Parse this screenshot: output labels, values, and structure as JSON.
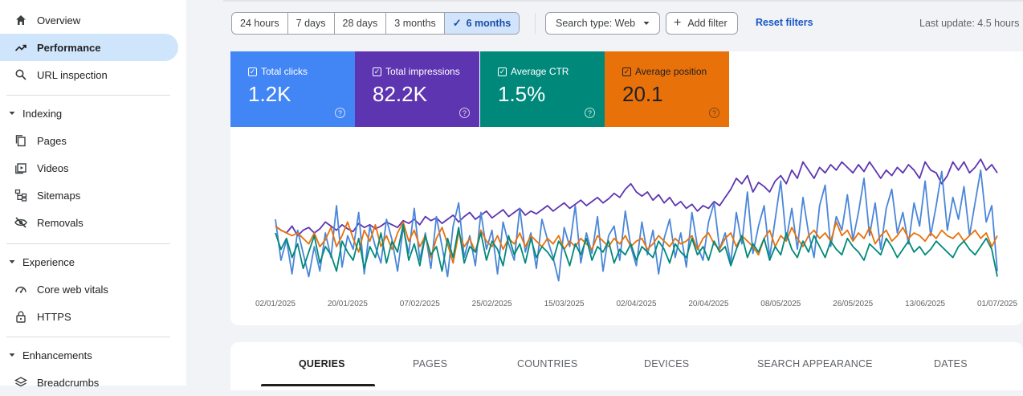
{
  "sidebar": {
    "items": [
      {
        "label": "Overview",
        "icon": "home-icon"
      },
      {
        "label": "Performance",
        "icon": "trending-up-icon",
        "active": true
      },
      {
        "label": "URL inspection",
        "icon": "search-icon"
      }
    ],
    "sections": [
      {
        "label": "Indexing",
        "items": [
          {
            "label": "Pages",
            "icon": "pages-icon"
          },
          {
            "label": "Videos",
            "icon": "video-icon"
          },
          {
            "label": "Sitemaps",
            "icon": "sitemap-icon"
          },
          {
            "label": "Removals",
            "icon": "eye-off-icon"
          }
        ]
      },
      {
        "label": "Experience",
        "items": [
          {
            "label": "Core web vitals",
            "icon": "gauge-icon"
          },
          {
            "label": "HTTPS",
            "icon": "lock-icon"
          }
        ]
      },
      {
        "label": "Enhancements",
        "items": [
          {
            "label": "Breadcrumbs",
            "icon": "layers-icon"
          }
        ]
      }
    ]
  },
  "toolbar": {
    "ranges": [
      "24 hours",
      "7 days",
      "28 days",
      "3 months",
      "6 months"
    ],
    "selected_range": "6 months",
    "search_type": "Search type: Web",
    "add_filter": "Add filter",
    "reset_filters": "Reset filters",
    "last_update": "Last update: 4.5 hours"
  },
  "metrics": [
    {
      "label": "Total clicks",
      "value": "1.2K",
      "color": "#4285f4"
    },
    {
      "label": "Total impressions",
      "value": "82.2K",
      "color": "#5e35b1"
    },
    {
      "label": "Average CTR",
      "value": "1.5%",
      "color": "#00897b"
    },
    {
      "label": "Average position",
      "value": "20.1",
      "color": "#e8710a"
    }
  ],
  "chart_data": {
    "type": "line",
    "x_labels": [
      "02/01/2025",
      "20/01/2025",
      "07/02/2025",
      "25/02/2025",
      "15/03/2025",
      "02/04/2025",
      "20/04/2025",
      "08/05/2025",
      "26/05/2025",
      "13/06/2025",
      "01/07/2025"
    ],
    "series": [
      {
        "metric": "impressions",
        "color": "#5e35b1",
        "values": [
          0.45,
          0.42,
          0.4,
          0.45,
          0.38,
          0.42,
          0.44,
          0.4,
          0.43,
          0.48,
          0.45,
          0.42,
          0.46,
          0.43,
          0.41,
          0.47,
          0.44,
          0.46,
          0.43,
          0.45,
          0.48,
          0.46,
          0.44,
          0.49,
          0.47,
          0.5,
          0.46,
          0.52,
          0.49,
          0.51,
          0.47,
          0.5,
          0.53,
          0.48,
          0.52,
          0.55,
          0.5,
          0.53,
          0.56,
          0.51,
          0.54,
          0.57,
          0.52,
          0.55,
          0.58,
          0.53,
          0.56,
          0.54,
          0.57,
          0.6,
          0.56,
          0.59,
          0.62,
          0.58,
          0.61,
          0.64,
          0.6,
          0.63,
          0.66,
          0.62,
          0.65,
          0.69,
          0.66,
          0.72,
          0.76,
          0.7,
          0.67,
          0.7,
          0.64,
          0.68,
          0.62,
          0.66,
          0.6,
          0.63,
          0.58,
          0.61,
          0.56,
          0.6,
          0.58,
          0.63,
          0.6,
          0.66,
          0.72,
          0.8,
          0.76,
          0.82,
          0.7,
          0.77,
          0.74,
          0.7,
          0.78,
          0.82,
          0.76,
          0.86,
          0.8,
          0.92,
          0.86,
          0.8,
          0.88,
          0.84,
          0.9,
          0.86,
          0.92,
          0.88,
          0.84,
          0.9,
          0.85,
          0.92,
          0.86,
          0.8,
          0.86,
          0.82,
          0.88,
          0.84,
          0.9,
          0.86,
          0.8,
          0.92,
          0.86,
          0.84,
          0.76,
          0.82,
          0.92,
          0.86,
          0.92,
          0.84,
          0.88,
          0.94,
          0.86,
          0.9,
          0.84
        ]
      },
      {
        "metric": "clicks",
        "color": "#4a86d9",
        "values": [
          0.5,
          0.2,
          0.35,
          0.1,
          0.42,
          0.25,
          0.08,
          0.3,
          0.12,
          0.4,
          0.22,
          0.6,
          0.15,
          0.38,
          0.28,
          0.55,
          0.1,
          0.45,
          0.3,
          0.18,
          0.5,
          0.35,
          0.12,
          0.44,
          0.25,
          0.58,
          0.2,
          0.4,
          0.14,
          0.52,
          0.3,
          0.08,
          0.45,
          0.62,
          0.22,
          0.38,
          0.16,
          0.55,
          0.28,
          0.42,
          0.1,
          0.48,
          0.32,
          0.2,
          0.58,
          0.26,
          0.4,
          0.14,
          0.5,
          0.35,
          0.22,
          0.05,
          0.44,
          0.3,
          0.6,
          0.18,
          0.4,
          0.25,
          0.52,
          0.12,
          0.38,
          0.45,
          0.2,
          0.56,
          0.3,
          0.16,
          0.48,
          0.24,
          0.42,
          0.1,
          0.36,
          0.5,
          0.22,
          0.4,
          0.15,
          0.55,
          0.3,
          0.2,
          0.48,
          0.62,
          0.28,
          0.4,
          0.18,
          0.55,
          0.32,
          0.7,
          0.25,
          0.45,
          0.6,
          0.22,
          0.5,
          0.78,
          0.35,
          0.58,
          0.28,
          0.66,
          0.4,
          0.22,
          0.6,
          0.75,
          0.3,
          0.52,
          0.42,
          0.68,
          0.35,
          0.55,
          0.8,
          0.38,
          0.62,
          0.28,
          0.58,
          0.72,
          0.4,
          0.55,
          0.32,
          0.62,
          0.45,
          0.78,
          0.38,
          0.6,
          0.85,
          0.42,
          0.66,
          0.5,
          0.74,
          0.38,
          0.62,
          0.86,
          0.48,
          0.6,
          0.12
        ]
      },
      {
        "metric": "position",
        "color": "#e8710a",
        "values": [
          0.45,
          0.42,
          0.4,
          0.38,
          0.4,
          0.36,
          0.32,
          0.4,
          0.3,
          0.35,
          0.44,
          0.3,
          0.38,
          0.48,
          0.36,
          0.26,
          0.42,
          0.34,
          0.46,
          0.3,
          0.38,
          0.28,
          0.4,
          0.48,
          0.34,
          0.42,
          0.3,
          0.38,
          0.22,
          0.36,
          0.44,
          0.32,
          0.18,
          0.4,
          0.3,
          0.36,
          0.26,
          0.42,
          0.34,
          0.3,
          0.38,
          0.28,
          0.36,
          0.32,
          0.4,
          0.3,
          0.38,
          0.34,
          0.3,
          0.36,
          0.32,
          0.38,
          0.28,
          0.34,
          0.3,
          0.36,
          0.32,
          0.28,
          0.38,
          0.34,
          0.3,
          0.36,
          0.32,
          0.38,
          0.3,
          0.34,
          0.36,
          0.28,
          0.32,
          0.38,
          0.34,
          0.3,
          0.36,
          0.32,
          0.34,
          0.38,
          0.28,
          0.36,
          0.4,
          0.32,
          0.28,
          0.36,
          0.4,
          0.3,
          0.38,
          0.34,
          0.3,
          0.24,
          0.36,
          0.42,
          0.3,
          0.38,
          0.34,
          0.44,
          0.36,
          0.3,
          0.38,
          0.42,
          0.36,
          0.4,
          0.34,
          0.48,
          0.38,
          0.42,
          0.34,
          0.4,
          0.36,
          0.44,
          0.32,
          0.38,
          0.42,
          0.34,
          0.38,
          0.44,
          0.36,
          0.4,
          0.38,
          0.34,
          0.4,
          0.36,
          0.42,
          0.38,
          0.36,
          0.4,
          0.34,
          0.38,
          0.42,
          0.36,
          0.4,
          0.3,
          0.38
        ]
      },
      {
        "metric": "ctr",
        "color": "#00897b",
        "values": [
          0.4,
          0.28,
          0.36,
          0.22,
          0.32,
          0.14,
          0.26,
          0.38,
          0.18,
          0.3,
          0.24,
          0.12,
          0.34,
          0.26,
          0.2,
          0.36,
          0.14,
          0.3,
          0.22,
          0.4,
          0.18,
          0.34,
          0.26,
          0.46,
          0.2,
          0.32,
          0.16,
          0.38,
          0.24,
          0.3,
          0.12,
          0.36,
          0.22,
          0.44,
          0.18,
          0.3,
          0.26,
          0.4,
          0.2,
          0.34,
          0.28,
          0.16,
          0.38,
          0.24,
          0.32,
          0.18,
          0.36,
          0.22,
          0.3,
          0.26,
          0.2,
          0.34,
          0.28,
          0.16,
          0.32,
          0.24,
          0.36,
          0.2,
          0.3,
          0.26,
          0.34,
          0.18,
          0.28,
          0.24,
          0.32,
          0.2,
          0.3,
          0.26,
          0.22,
          0.34,
          0.28,
          0.18,
          0.32,
          0.26,
          0.22,
          0.36,
          0.24,
          0.3,
          0.2,
          0.34,
          0.26,
          0.3,
          0.16,
          0.28,
          0.38,
          0.22,
          0.32,
          0.26,
          0.36,
          0.2,
          0.3,
          0.24,
          0.4,
          0.28,
          0.22,
          0.34,
          0.26,
          0.38,
          0.3,
          0.22,
          0.34,
          0.28,
          0.24,
          0.36,
          0.3,
          0.26,
          0.2,
          0.32,
          0.28,
          0.24,
          0.36,
          0.3,
          0.22,
          0.28,
          0.34,
          0.26,
          0.3,
          0.24,
          0.28,
          0.34,
          0.3,
          0.26,
          0.22,
          0.3,
          0.34,
          0.28,
          0.24,
          0.3,
          0.36,
          0.28,
          0.08
        ]
      }
    ]
  },
  "tabs": [
    "QUERIES",
    "PAGES",
    "COUNTRIES",
    "DEVICES",
    "SEARCH APPEARANCE",
    "DATES"
  ],
  "selected_tab": "QUERIES"
}
